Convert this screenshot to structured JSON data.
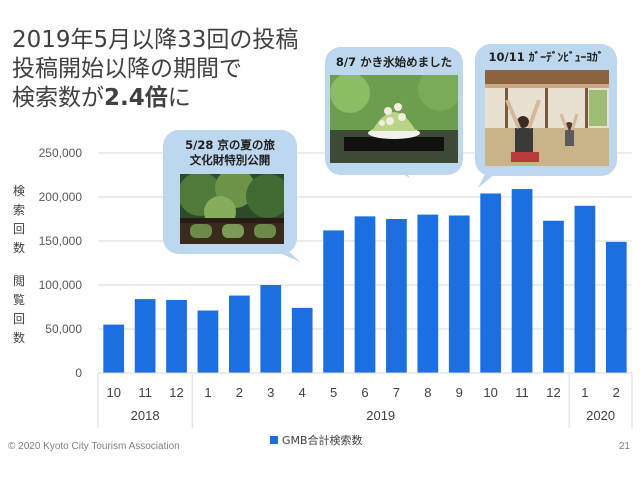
{
  "headline": {
    "line1": "2019年5月以降33回の投稿",
    "line2": "投稿開始以降の期間で",
    "line3_prefix": "検索数が",
    "line3_emph": "2.4倍",
    "line3_suffix": "に"
  },
  "ylabel": {
    "top": [
      "検",
      "索",
      "回",
      "数"
    ],
    "bottom": [
      "閲",
      "覧",
      "回",
      "数"
    ]
  },
  "callouts": [
    {
      "title_line1": "5/28 京の夏の旅",
      "title_line2": "文化財特別公開",
      "photo": "temple-garden-photo"
    },
    {
      "title_line1": "8/7 かき氷始めました",
      "title_line2": "",
      "photo": "shaved-ice-photo"
    },
    {
      "title_line1": "10/11 ｶﾞｰﾃﾞﾝﾋﾞｭｰﾖｶﾞ",
      "title_line2": "",
      "photo": "garden-yoga-photo"
    }
  ],
  "footer": {
    "copyright": "© 2020 Kyoto City Tourism Association",
    "page_number": "21"
  },
  "colors": {
    "bar": "#1c6fe0",
    "bubble": "#bdd7ee",
    "grid": "#d9d9d9"
  },
  "chart_data": {
    "type": "bar",
    "categories": [
      "10",
      "11",
      "12",
      "1",
      "2",
      "3",
      "4",
      "5",
      "6",
      "7",
      "8",
      "9",
      "10",
      "11",
      "12",
      "1",
      "2"
    ],
    "year_groups": [
      {
        "label": "2018",
        "start": 0,
        "end": 2
      },
      {
        "label": "2019",
        "start": 3,
        "end": 14
      },
      {
        "label": "2020",
        "start": 15,
        "end": 16
      }
    ],
    "series": [
      {
        "name": "GMB合計検索数",
        "values": [
          55000,
          84000,
          83000,
          71000,
          88000,
          100000,
          74000,
          162000,
          178000,
          175000,
          180000,
          179000,
          204000,
          209000,
          173000,
          190000,
          149000
        ]
      }
    ],
    "ylim": [
      0,
      250000
    ],
    "yticks": [
      0,
      50000,
      100000,
      150000,
      200000,
      250000
    ],
    "ytick_labels": [
      "0",
      "50,000",
      "100,000",
      "150,000",
      "200,000",
      "250,000"
    ],
    "grid": true,
    "legend_position": "bottom"
  }
}
